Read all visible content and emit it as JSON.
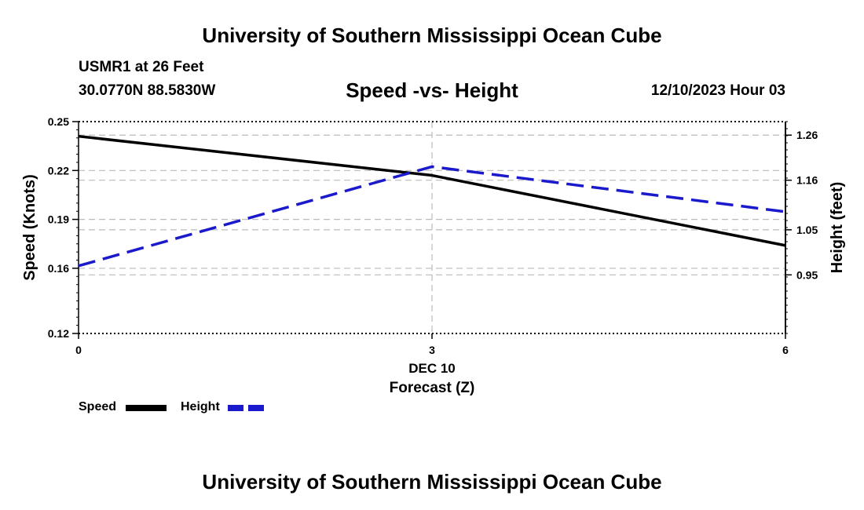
{
  "header": {
    "title": "University of Southern Mississippi Ocean Cube",
    "station": "USMR1 at 26 Feet",
    "coords": "30.0770N  88.5830W",
    "subtitle": "Speed -vs- Height",
    "datetime": "12/10/2023 Hour 03"
  },
  "footer": {
    "title": "University of Southern Mississippi Ocean Cube"
  },
  "chart_data": {
    "type": "line",
    "title": "Speed -vs- Height",
    "x": [
      0,
      3,
      6
    ],
    "x_tick_labels": [
      "0",
      "3",
      "6"
    ],
    "x_date_label": "DEC 10",
    "xlabel": "Forecast (Z)",
    "xlim": [
      0,
      6
    ],
    "ylabel_left": "Speed (Knots)",
    "ylim_left": [
      0.12,
      0.25
    ],
    "yticks_left": [
      0.12,
      0.16,
      0.19,
      0.22,
      0.25
    ],
    "ytick_labels_left": [
      "0.12",
      "0.16",
      "0.19",
      "0.22",
      "0.25"
    ],
    "ylabel_right": "Height (feet)",
    "ylim_right": [
      0.82,
      1.29
    ],
    "yticks_right": [
      0.95,
      1.05,
      1.16,
      1.26
    ],
    "ytick_labels_right": [
      "0.95",
      "1.05",
      "1.16",
      "1.26"
    ],
    "series": [
      {
        "name": "Speed",
        "axis": "left",
        "values": [
          0.241,
          0.217,
          0.174
        ],
        "color": "#000000",
        "style": "solid"
      },
      {
        "name": "Height",
        "axis": "right",
        "values": [
          0.97,
          1.19,
          1.09
        ],
        "color": "#1a1acc",
        "style": "dashed"
      }
    ],
    "legend": [
      {
        "label": "Speed",
        "color": "#000000"
      },
      {
        "label": "Height",
        "color": "#1a1acc"
      }
    ],
    "legend_placement": "bottom-left",
    "grid": true
  }
}
